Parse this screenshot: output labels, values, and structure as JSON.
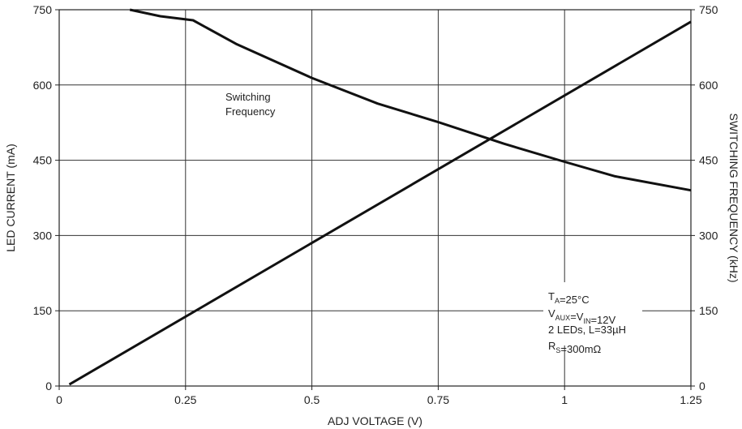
{
  "chart_data": {
    "type": "line",
    "x_axis": {
      "label": "ADJ VOLTAGE (V)",
      "range": [
        0,
        1.25
      ],
      "ticks": [
        0,
        0.25,
        0.5,
        0.75,
        1,
        1.25
      ],
      "tick_labels": [
        "0",
        "0.25",
        "0.5",
        "0.75",
        "1",
        "1.25"
      ]
    },
    "y_axis_left": {
      "label": "LED CURRENT (mA)",
      "range": [
        0,
        750
      ],
      "ticks": [
        0,
        150,
        300,
        450,
        600,
        750
      ],
      "tick_labels": [
        "0",
        "150",
        "300",
        "450",
        "600",
        "750"
      ]
    },
    "y_axis_right": {
      "label": "SWITCHING FREQUENCY (kHz)",
      "range": [
        0,
        750
      ],
      "ticks": [
        0,
        150,
        300,
        450,
        600,
        750
      ],
      "tick_labels": [
        "0",
        "150",
        "300",
        "450",
        "600",
        "750"
      ]
    },
    "grid": true,
    "series": [
      {
        "axis": "left",
        "x": [
          0.02,
          1.25
        ],
        "y": [
          3,
          726
        ]
      },
      {
        "name": "Switching Frequency",
        "axis": "right",
        "x": [
          0.14,
          0.2,
          0.265,
          0.35,
          0.5,
          0.63,
          0.75,
          0.88,
          1.0,
          1.1,
          1.25
        ],
        "y": [
          750,
          737,
          729,
          682,
          614,
          563,
          526,
          483,
          447,
          418,
          390
        ]
      }
    ],
    "annotations": {
      "series_label_line1": "Switching",
      "series_label_line2": "Frequency",
      "conditions": [
        {
          "a": "T",
          "a_sub": "A",
          "b": "=25°C"
        },
        {
          "a": "V",
          "a_sub": "AUX",
          "b": "=V",
          "b_sub": "IN",
          "c": "=12V"
        },
        {
          "a": "2 LEDs, L=33µH"
        },
        {
          "a": "R",
          "a_sub": "S",
          "b": "=300mΩ"
        }
      ]
    }
  }
}
